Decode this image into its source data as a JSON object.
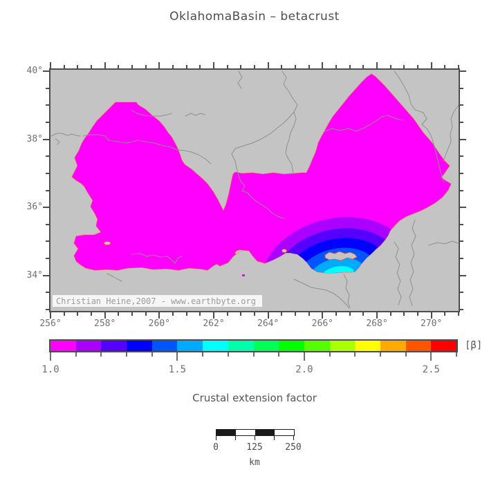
{
  "title": "OklahomaBasin – betacrust",
  "map": {
    "watermark": "Christian Heine,2007 - www.earthbyte.org",
    "x_tick_labels": [
      "256°",
      "258°",
      "260°",
      "262°",
      "264°",
      "266°",
      "268°",
      "270°"
    ],
    "y_tick_labels": [
      "40°",
      "38°",
      "36°",
      "34°"
    ],
    "background_color": "#c4c4c4",
    "basin_color": "#ff00ff",
    "frame_color": "#4d4d4d",
    "river_color": "#8f8f8f",
    "edge_fringe_color": "#ff4433"
  },
  "colorbar": {
    "label": "Crustal extension factor",
    "unit": "[β]",
    "min": 1.0,
    "max": 2.6,
    "step": 0.1,
    "tick_labels": [
      "1.0",
      "1.5",
      "2.0",
      "2.5"
    ],
    "colors": [
      "#ff00ff",
      "#aa00ff",
      "#5500ff",
      "#0000ff",
      "#0055ff",
      "#00aaff",
      "#00ffff",
      "#00ffaa",
      "#00ff55",
      "#00ff00",
      "#55ff00",
      "#aaff00",
      "#ffff00",
      "#ffaa00",
      "#ff5500",
      "#ff0000"
    ]
  },
  "scalebar": {
    "tick_labels": [
      "0",
      "125",
      "250"
    ],
    "unit": "km"
  }
}
